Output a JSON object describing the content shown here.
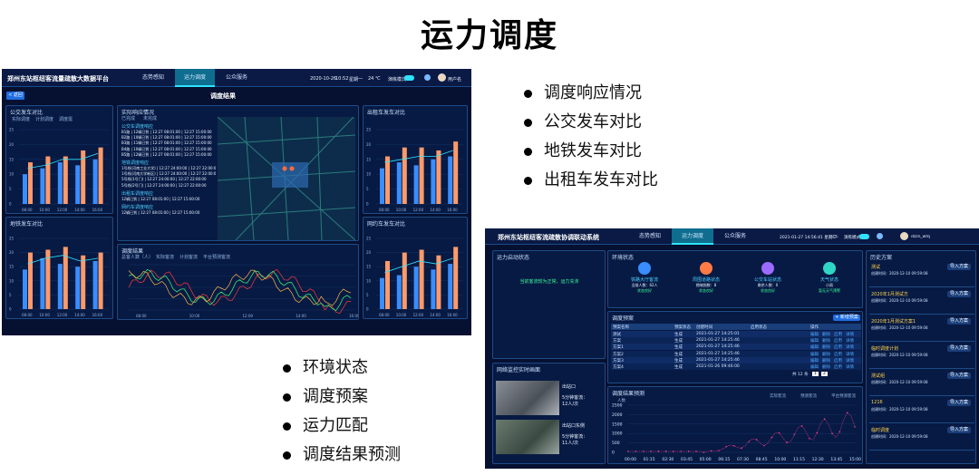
{
  "page_title": "运力调度",
  "bullets_right": [
    "调度响应情况",
    "公交发车对比",
    "地铁发车对比",
    "出租车发车对比"
  ],
  "bullets_bottom": [
    "环境状态",
    "调度预案",
    "运力匹配",
    "调度结果预测"
  ],
  "screen1": {
    "app_title": "郑州东站枢纽客流量疏散大数据平台",
    "tabs": [
      "态势感知",
      "运力调度",
      "公众服务"
    ],
    "active_tab": "运力调度",
    "datetime": "2020-10-26",
    "time": "10:52",
    "weekday": "星期一",
    "weather": "24 ℃",
    "mode_label": "演练模式",
    "user": "用户名",
    "back_button": "< 返回",
    "subtitle": "调度结果",
    "panel_bus": "公交发车对比",
    "panel_metro": "地铁发车对比",
    "panel_response": "实际响应情况",
    "panel_trains": "出租车发车对比",
    "panel_dispatch_result": "调度结果",
    "panel_longdist": "网约车发车对比",
    "legend_actual": "实际调度",
    "legend_plan": "计划调度",
    "legend_demand": "调度需",
    "response_legend": [
      "已完成",
      "未完成"
    ],
    "response_groups": [
      {
        "name": "公交车调度响应",
        "rows": [
          "B1路 | 12辆已到 | 12:27 08:01:00 | 12:27 15:00:00",
          "B2路 | 10辆已到 | 12:27 08:01:00 | 12:27 15:00:00",
          "B3路 | 11辆已到 | 12:27 08:01:00 | 12:27 15:00:00",
          "B4路 | 10辆已到 | 12:27 08:01:00 | 12:27 15:00:00",
          "B5路 | 12辆已到 | 12:27 08:01:00 | 12:27 15:00:00"
        ]
      },
      {
        "name": "地铁调度响应",
        "rows": [
          "1号线(河南工业大学) | 12:27 24:00:00 | 12:27 22:00:00",
          "1号线(河南大学新区) | 12:27 24:00:00 | 12:27 22:00:00",
          "5号线(1号门) | 12:27 24:00:00 | 12:27 22:00:00",
          "5号线(2号门) | 12:27 24:00:00 | 12:27 22:00:00"
        ]
      },
      {
        "name": "出租车调度响应",
        "rows": [
          "12辆已到 | 12:27 08:01:00 | 12:27 15:00:00"
        ]
      },
      {
        "name": "网约车调度响应",
        "rows": [
          "12辆已到 | 12:27 08:01:00 | 12:27 15:00:00"
        ]
      }
    ],
    "result_ylabel": "总客人数（人）",
    "result_legend": [
      "实际客流",
      "计划客流",
      "平台预测客流"
    ],
    "x_ticks": [
      "08:00",
      "10:00",
      "12:00",
      "14:00",
      "16:00"
    ],
    "y_ticks": [
      "25",
      "20",
      "15",
      "10",
      "5",
      "0"
    ],
    "colors": {
      "actual": "#3a8dff",
      "plan": "#ff9a6a",
      "demand": "#2fe3ff",
      "line_red": "#ff3b3b",
      "line_green": "#3dff7a",
      "line_orange": "#ffb347"
    }
  },
  "screen2": {
    "app_title": "郑州东站枢纽客流疏散协调联动系统",
    "tabs": [
      "态势感知",
      "运力调度",
      "公众服务"
    ],
    "active_tab": "运力调度",
    "datetime": "2021-01-27 14:56:41 星期三",
    "weather": "5℃",
    "mode_label": "演练模式",
    "user": "dzzn_wfq",
    "panel_activation": "运力启动状态",
    "activation_text": "当前客流较为正常，运力充沛",
    "panel_env": "环境状态",
    "env_cards": [
      {
        "name": "铁路大厅客流",
        "value": "当前人数：62人",
        "status": "状态良好"
      },
      {
        "name": "周围道路状态",
        "value": "拥堵指数：8",
        "status": "状态良好"
      },
      {
        "name": "公交车站状态",
        "value": "剩余人数：0",
        "status": "状态良好"
      },
      {
        "name": "天气状态",
        "value": "小雨",
        "status": "暂无天气预警"
      }
    ],
    "panel_plan": "调度预案",
    "plan_button": "+ 新增预案",
    "plan_headers": [
      "预案名称",
      "预案状态",
      "创建时间",
      "启用状态",
      "操作"
    ],
    "plan_rows": [
      [
        "测试",
        "生成",
        "2021-01-27 14:25:01"
      ],
      [
        "方案",
        "生成",
        "2021-01-27 14:25:46"
      ],
      [
        "方案1",
        "生成",
        "2021-01-27 14:25:46"
      ],
      [
        "方案2",
        "生成",
        "2021-01-27 14:25:46"
      ],
      [
        "方案3",
        "生成",
        "2021-01-27 14:25:46"
      ],
      [
        "方案4",
        "生成",
        "2021-01-26 09:46:00"
      ]
    ],
    "row_actions": [
      "编辑",
      "删除",
      "启用",
      "详情"
    ],
    "pager": [
      "共 12 条",
      "1",
      "2"
    ],
    "panel_camera": "网络监控实时画面",
    "cameras": [
      {
        "name": "出站口",
        "line1": "5分钟客流：",
        "line2": "12人/次"
      },
      {
        "name": "出站口东侧",
        "line1": "5分钟客流：",
        "line2": "11人/次"
      }
    ],
    "panel_forecast": "调度结果预测",
    "forecast_legend": [
      "实际客流",
      "预测客流",
      "平台预测客流"
    ],
    "forecast_ylabel": "人数",
    "forecast_y_ticks": [
      "2500",
      "2000",
      "1500",
      "1000",
      "500",
      "0"
    ],
    "forecast_x_ticks": [
      "00:00",
      "01:15",
      "02:30",
      "03:45",
      "05:00",
      "06:15",
      "07:30",
      "08:45",
      "10:00",
      "11:15",
      "12:30",
      "13:45",
      "15:00"
    ],
    "panel_history": "历史方案",
    "history": [
      {
        "name": "测试",
        "date": "2020-12-10 09:59:08"
      },
      {
        "name": "2020年1月测试方",
        "date": "2020-12-10 09:59:08"
      },
      {
        "name": "2020年1月测试方案1",
        "date": "2020-12-10 09:59:08"
      },
      {
        "name": "临时调度计划",
        "date": "2020-12-10 09:59:08"
      },
      {
        "name": "测试组",
        "date": "2020-12-10 09:59:08"
      },
      {
        "name": "1216",
        "date": "2020-12-10 09:59:08"
      },
      {
        "name": "临时调度",
        "date": "2020-12-10 09:59:08"
      }
    ],
    "history_button": "导入方案",
    "history_date_label": "创建时间："
  },
  "bus_chart": {
    "type": "bar",
    "categories": [
      "08:00",
      "10:00",
      "12:00",
      "14:00",
      "16:00"
    ],
    "series": [
      {
        "name": "实际调度",
        "values": [
          10,
          12,
          14,
          13,
          15
        ]
      },
      {
        "name": "计划调度",
        "values": [
          14,
          16,
          16,
          18,
          19
        ]
      },
      {
        "name": "调度需",
        "values": [
          12,
          13,
          15,
          15,
          17
        ]
      }
    ]
  }
}
